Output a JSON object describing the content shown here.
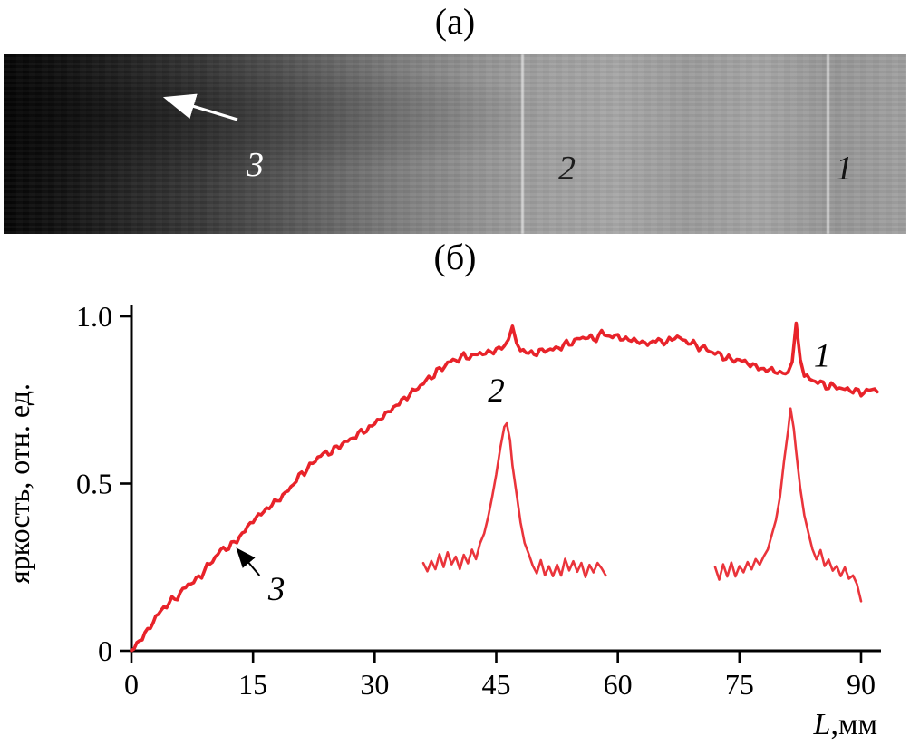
{
  "figure": {
    "panel_a": {
      "title": "(а)",
      "photo_labels": {
        "l1": "1",
        "l2": "2",
        "l3": "3"
      }
    },
    "panel_b": {
      "title": "(б)"
    }
  },
  "chart_data": {
    "type": "line",
    "title": "",
    "xlabel": "L,мм",
    "ylabel": "яркость, отн. ед.",
    "xlim": [
      0,
      92
    ],
    "ylim": [
      0,
      1.0
    ],
    "grid": false,
    "legend": "none",
    "line_color": "#e8232a",
    "xticks": [
      {
        "v": 0,
        "label": "0"
      },
      {
        "v": 15,
        "label": "15"
      },
      {
        "v": 30,
        "label": "30"
      },
      {
        "v": 45,
        "label": "45"
      },
      {
        "v": 60,
        "label": "60"
      },
      {
        "v": 75,
        "label": "75"
      },
      {
        "v": 90,
        "label": "90"
      }
    ],
    "yticks": [
      {
        "v": 0,
        "label": "0"
      },
      {
        "v": 0.5,
        "label": "0.5"
      },
      {
        "v": 1.0,
        "label": "1.0"
      }
    ],
    "series": [
      {
        "name": "profile-main",
        "points": [
          [
            0,
            0
          ],
          [
            1,
            0.03
          ],
          [
            2,
            0.06
          ],
          [
            3,
            0.1
          ],
          [
            4,
            0.13
          ],
          [
            5,
            0.15
          ],
          [
            6,
            0.17
          ],
          [
            7,
            0.2
          ],
          [
            8,
            0.21
          ],
          [
            9,
            0.24
          ],
          [
            10,
            0.27
          ],
          [
            11,
            0.3
          ],
          [
            12,
            0.31
          ],
          [
            13,
            0.33
          ],
          [
            14,
            0.36
          ],
          [
            15,
            0.39
          ],
          [
            16,
            0.41
          ],
          [
            17,
            0.43
          ],
          [
            18,
            0.45
          ],
          [
            19,
            0.47
          ],
          [
            20,
            0.5
          ],
          [
            21,
            0.53
          ],
          [
            22,
            0.55
          ],
          [
            23,
            0.58
          ],
          [
            24,
            0.59
          ],
          [
            25,
            0.6
          ],
          [
            26,
            0.62
          ],
          [
            27,
            0.63
          ],
          [
            28,
            0.65
          ],
          [
            29,
            0.66
          ],
          [
            30,
            0.68
          ],
          [
            31,
            0.7
          ],
          [
            32,
            0.72
          ],
          [
            33,
            0.74
          ],
          [
            34,
            0.76
          ],
          [
            35,
            0.78
          ],
          [
            36,
            0.8
          ],
          [
            37,
            0.82
          ],
          [
            38,
            0.84
          ],
          [
            39,
            0.86
          ],
          [
            40,
            0.87
          ],
          [
            41,
            0.88
          ],
          [
            42,
            0.88
          ],
          [
            43,
            0.89
          ],
          [
            44,
            0.89
          ],
          [
            45,
            0.9
          ],
          [
            46,
            0.91
          ],
          [
            46.5,
            0.93
          ],
          [
            47,
            0.97
          ],
          [
            47.5,
            0.92
          ],
          [
            48,
            0.9
          ],
          [
            49,
            0.89
          ],
          [
            50,
            0.89
          ],
          [
            51,
            0.9
          ],
          [
            52,
            0.9
          ],
          [
            53,
            0.91
          ],
          [
            54,
            0.92
          ],
          [
            55,
            0.93
          ],
          [
            56,
            0.94
          ],
          [
            57,
            0.93
          ],
          [
            58,
            0.95
          ],
          [
            59,
            0.94
          ],
          [
            60,
            0.94
          ],
          [
            61,
            0.93
          ],
          [
            62,
            0.93
          ],
          [
            63,
            0.92
          ],
          [
            64,
            0.92
          ],
          [
            65,
            0.93
          ],
          [
            66,
            0.92
          ],
          [
            67,
            0.94
          ],
          [
            68,
            0.93
          ],
          [
            69,
            0.92
          ],
          [
            70,
            0.91
          ],
          [
            71,
            0.9
          ],
          [
            72,
            0.89
          ],
          [
            73,
            0.88
          ],
          [
            74,
            0.87
          ],
          [
            75,
            0.87
          ],
          [
            76,
            0.86
          ],
          [
            77,
            0.85
          ],
          [
            78,
            0.84
          ],
          [
            79,
            0.84
          ],
          [
            80,
            0.83
          ],
          [
            81,
            0.83
          ],
          [
            81.5,
            0.86
          ],
          [
            82,
            0.97
          ],
          [
            82.5,
            0.87
          ],
          [
            83,
            0.82
          ],
          [
            84,
            0.81
          ],
          [
            85,
            0.8
          ],
          [
            86,
            0.79
          ],
          [
            87,
            0.79
          ],
          [
            88,
            0.78
          ],
          [
            89,
            0.78
          ],
          [
            90,
            0.77
          ],
          [
            91,
            0.78
          ],
          [
            92,
            0.78
          ]
        ]
      },
      {
        "name": "inset-peak-2",
        "points": [
          [
            36,
            0.26
          ],
          [
            36.5,
            0.23
          ],
          [
            37,
            0.27
          ],
          [
            37.5,
            0.24
          ],
          [
            38,
            0.28
          ],
          [
            38.5,
            0.25
          ],
          [
            39,
            0.29
          ],
          [
            39.5,
            0.25
          ],
          [
            40,
            0.28
          ],
          [
            40.5,
            0.24
          ],
          [
            41,
            0.28
          ],
          [
            41.5,
            0.26
          ],
          [
            42,
            0.3
          ],
          [
            42.5,
            0.27
          ],
          [
            43,
            0.32
          ],
          [
            43.5,
            0.35
          ],
          [
            44,
            0.4
          ],
          [
            44.5,
            0.46
          ],
          [
            45,
            0.53
          ],
          [
            45.5,
            0.61
          ],
          [
            46,
            0.67
          ],
          [
            46.3,
            0.68
          ],
          [
            46.7,
            0.63
          ],
          [
            47,
            0.56
          ],
          [
            47.5,
            0.47
          ],
          [
            48,
            0.39
          ],
          [
            48.5,
            0.33
          ],
          [
            49,
            0.29
          ],
          [
            49.5,
            0.26
          ],
          [
            50,
            0.24
          ],
          [
            50.5,
            0.27
          ],
          [
            51,
            0.23
          ],
          [
            51.5,
            0.26
          ],
          [
            52,
            0.22
          ],
          [
            52.5,
            0.26
          ],
          [
            53,
            0.23
          ],
          [
            53.5,
            0.27
          ],
          [
            54,
            0.24
          ],
          [
            54.5,
            0.27
          ],
          [
            55,
            0.23
          ],
          [
            55.5,
            0.26
          ],
          [
            56,
            0.22
          ],
          [
            56.5,
            0.25
          ],
          [
            57,
            0.23
          ],
          [
            57.5,
            0.26
          ],
          [
            58,
            0.24
          ],
          [
            58.5,
            0.22
          ]
        ]
      },
      {
        "name": "inset-peak-1",
        "points": [
          [
            72,
            0.25
          ],
          [
            72.5,
            0.21
          ],
          [
            73,
            0.26
          ],
          [
            73.5,
            0.22
          ],
          [
            74,
            0.26
          ],
          [
            74.5,
            0.22
          ],
          [
            75,
            0.25
          ],
          [
            75.5,
            0.23
          ],
          [
            76,
            0.26
          ],
          [
            76.5,
            0.24
          ],
          [
            77,
            0.27
          ],
          [
            77.5,
            0.25
          ],
          [
            78,
            0.28
          ],
          [
            78.5,
            0.3
          ],
          [
            79,
            0.34
          ],
          [
            79.5,
            0.39
          ],
          [
            80,
            0.46
          ],
          [
            80.5,
            0.56
          ],
          [
            81,
            0.66
          ],
          [
            81.3,
            0.72
          ],
          [
            81.7,
            0.67
          ],
          [
            82,
            0.59
          ],
          [
            82.5,
            0.49
          ],
          [
            83,
            0.41
          ],
          [
            83.5,
            0.35
          ],
          [
            84,
            0.31
          ],
          [
            84.5,
            0.28
          ],
          [
            85,
            0.3
          ],
          [
            85.5,
            0.26
          ],
          [
            86,
            0.28
          ],
          [
            86.5,
            0.24
          ],
          [
            87,
            0.26
          ],
          [
            87.5,
            0.23
          ],
          [
            88,
            0.25
          ],
          [
            88.5,
            0.22
          ],
          [
            89,
            0.23
          ],
          [
            89.5,
            0.2
          ],
          [
            90,
            0.15
          ]
        ]
      }
    ],
    "annotations": [
      {
        "text": "2",
        "x": 45,
        "y": 0.745
      },
      {
        "text": "1",
        "x": 85.2,
        "y": 0.85
      },
      {
        "text": "3",
        "x": 17.9,
        "y": 0.152,
        "arrow": {
          "from": [
            15.8,
            0.225
          ],
          "to": [
            13.2,
            0.3
          ]
        }
      }
    ]
  }
}
